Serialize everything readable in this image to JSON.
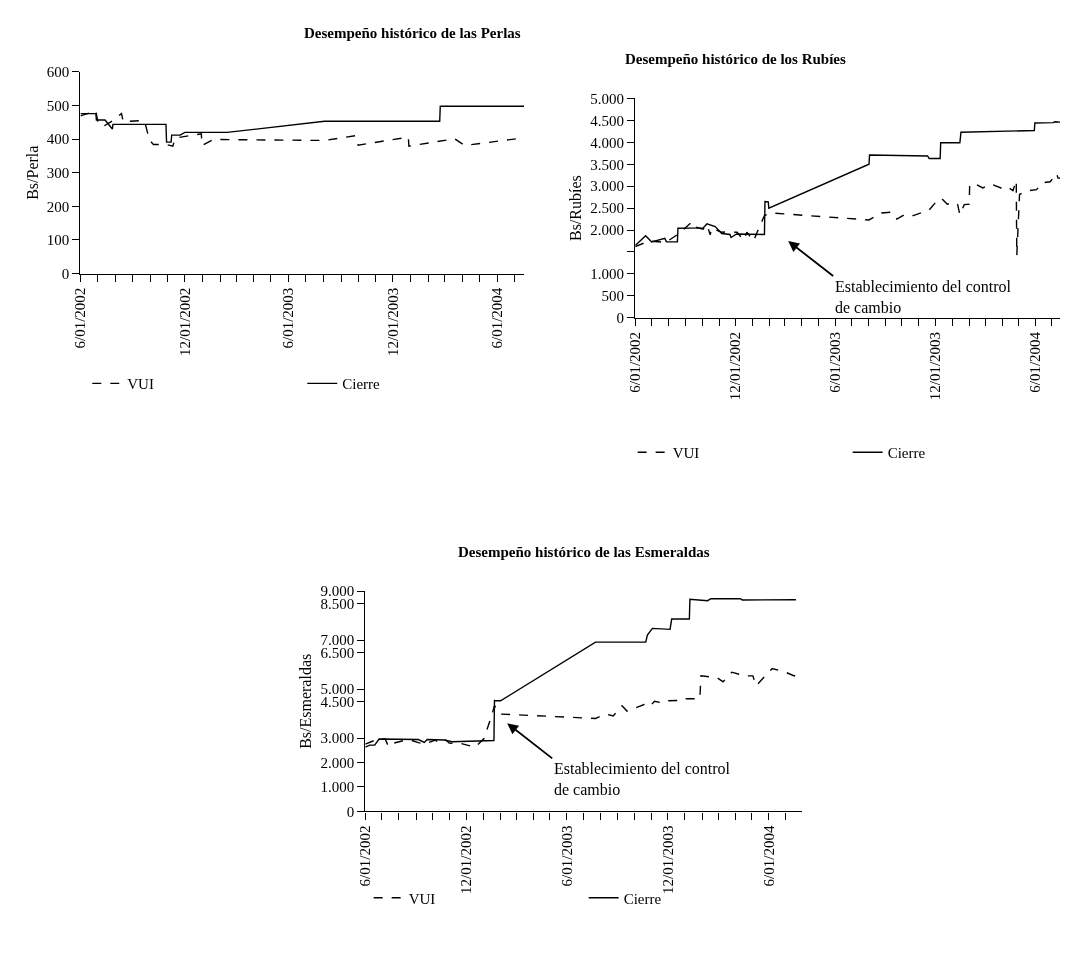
{
  "chart_data": [
    {
      "type": "line",
      "title": "Desempeño histórico de las Perlas",
      "ylabel": "Bs/Perla",
      "legend": "bottom",
      "marker": "none",
      "xlim": [
        "2002-06-01",
        "2004-07-18"
      ],
      "xticks": [
        {
          "value": "2002-06-01",
          "label": "6/01/2002"
        },
        {
          "value": "2002-07-01",
          "label": null
        },
        {
          "value": "2002-08-01",
          "label": null
        },
        {
          "value": "2002-09-01",
          "label": null
        },
        {
          "value": "2002-10-01",
          "label": null
        },
        {
          "value": "2002-11-01",
          "label": null
        },
        {
          "value": "2002-12-01",
          "label": "12/01/2002"
        },
        {
          "value": "2003-01-01",
          "label": null
        },
        {
          "value": "2003-02-01",
          "label": null
        },
        {
          "value": "2003-03-01",
          "label": null
        },
        {
          "value": "2003-04-01",
          "label": null
        },
        {
          "value": "2003-05-01",
          "label": null
        },
        {
          "value": "2003-06-01",
          "label": "6/01/2003"
        },
        {
          "value": "2003-07-01",
          "label": null
        },
        {
          "value": "2003-08-01",
          "label": null
        },
        {
          "value": "2003-09-01",
          "label": null
        },
        {
          "value": "2003-10-01",
          "label": null
        },
        {
          "value": "2003-11-01",
          "label": null
        },
        {
          "value": "2003-12-01",
          "label": "12/01/2003"
        },
        {
          "value": "2004-01-01",
          "label": null
        },
        {
          "value": "2004-02-01",
          "label": null
        },
        {
          "value": "2004-03-01",
          "label": null
        },
        {
          "value": "2004-04-01",
          "label": null
        },
        {
          "value": "2004-05-01",
          "label": null
        },
        {
          "value": "2004-06-01",
          "label": "6/01/2004"
        },
        {
          "value": "2004-07-01",
          "label": null
        }
      ],
      "ylim": [
        0,
        600
      ],
      "yticks": [
        0,
        100,
        200,
        300,
        400,
        500,
        600
      ],
      "series": [
        {
          "name": "VUI",
          "color": "#000000",
          "line_style": "dashed",
          "x": [
            "2002-06-01",
            "2002-06-28",
            "2002-07-02",
            "2002-07-11",
            "2002-07-25",
            "2002-08-12",
            "2002-08-15",
            "2002-09-14",
            "2002-09-22",
            "2002-09-30",
            "2002-10-07",
            "2002-10-29",
            "2002-11-10",
            "2002-11-14",
            "2002-12-30",
            "2002-12-31",
            "2003-01-20",
            "2003-08-03",
            "2003-09-26",
            "2003-10-01",
            "2003-12-28",
            "2003-12-29",
            "2004-03-18",
            "2004-04-05",
            "2004-07-18"
          ],
          "values": [
            469,
            484,
            447,
            438,
            452,
            476,
            452,
            455,
            450,
            397,
            384,
            384,
            379,
            403,
            416,
            381,
            399,
            396,
            410,
            382,
            406,
            379,
            401,
            381,
            404
          ]
        },
        {
          "name": "Cierre",
          "color": "#000000",
          "line_style": "solid",
          "x": [
            "2002-06-01",
            "2002-06-28",
            "2002-06-29",
            "2002-07-14",
            "2002-07-27",
            "2002-07-28",
            "2002-10-29",
            "2002-10-30",
            "2002-11-07",
            "2002-11-08",
            "2002-11-23",
            "2002-12-01",
            "2003-02-13",
            "2003-08-03",
            "2004-02-21",
            "2004-02-22",
            "2004-07-18"
          ],
          "values": [
            476,
            476,
            457,
            457,
            430,
            444,
            444,
            391,
            391,
            412,
            412,
            420,
            420,
            453,
            453,
            498,
            498
          ]
        }
      ]
    },
    {
      "type": "line",
      "title": "Desempeño histórico de los Rubíes",
      "ylabel": "Bs/Rubíes",
      "legend": "bottom",
      "marker": "none",
      "xlim": [
        "2002-06-01",
        "2004-07-16"
      ],
      "xticks": [
        {
          "value": "2002-06-01",
          "label": "6/01/2002"
        },
        {
          "value": "2002-07-01",
          "label": null
        },
        {
          "value": "2002-08-01",
          "label": null
        },
        {
          "value": "2002-09-01",
          "label": null
        },
        {
          "value": "2002-10-01",
          "label": null
        },
        {
          "value": "2002-11-01",
          "label": null
        },
        {
          "value": "2002-12-01",
          "label": "12/01/2002"
        },
        {
          "value": "2003-01-01",
          "label": null
        },
        {
          "value": "2003-02-01",
          "label": null
        },
        {
          "value": "2003-03-01",
          "label": null
        },
        {
          "value": "2003-04-01",
          "label": null
        },
        {
          "value": "2003-05-01",
          "label": null
        },
        {
          "value": "2003-06-01",
          "label": "6/01/2003"
        },
        {
          "value": "2003-07-01",
          "label": null
        },
        {
          "value": "2003-08-01",
          "label": null
        },
        {
          "value": "2003-09-01",
          "label": null
        },
        {
          "value": "2003-10-01",
          "label": null
        },
        {
          "value": "2003-11-01",
          "label": null
        },
        {
          "value": "2003-12-01",
          "label": "12/01/2003"
        },
        {
          "value": "2004-01-01",
          "label": null
        },
        {
          "value": "2004-02-01",
          "label": null
        },
        {
          "value": "2004-03-01",
          "label": null
        },
        {
          "value": "2004-04-01",
          "label": null
        },
        {
          "value": "2004-05-01",
          "label": null
        },
        {
          "value": "2004-06-01",
          "label": "6/01/2004"
        },
        {
          "value": "2004-07-01",
          "label": null
        }
      ],
      "ylim": [
        0,
        5000
      ],
      "yticks": [
        0,
        500,
        {
          "value": 1000,
          "label": "1.000"
        },
        {
          "value": 1500,
          "label": null
        },
        {
          "value": 2000,
          "label": "2.000"
        },
        {
          "value": 2500,
          "label": "2.500"
        },
        {
          "value": 3000,
          "label": "3.000"
        },
        {
          "value": 3500,
          "label": "3.500"
        },
        {
          "value": 4000,
          "label": "4.000"
        },
        {
          "value": 4500,
          "label": "4.500"
        },
        {
          "value": 5000,
          "label": "5.000"
        }
      ],
      "annotations": [
        "Establecimiento del control\nde cambio"
      ],
      "series": [
        {
          "name": "VUI",
          "color": "#000000",
          "line_style": "dashed",
          "x": [
            "2002-06-01",
            "2002-06-26",
            "2002-07-27",
            "2002-08-20",
            "2002-09-12",
            "2002-09-15",
            "2002-10-03",
            "2002-10-10",
            "2002-10-16",
            "2002-10-18",
            "2002-11-06",
            "2002-11-19",
            "2002-12-04",
            "2002-12-16",
            "2002-12-22",
            "2003-01-03",
            "2003-01-10",
            "2003-01-23",
            "2003-02-04",
            "2003-08-02",
            "2003-08-25",
            "2003-09-12",
            "2003-09-22",
            "2003-10-07",
            "2003-10-22",
            "2003-11-20",
            "2003-12-01",
            "2003-12-12",
            "2003-12-23",
            "2004-01-05",
            "2004-01-11",
            "2004-01-15",
            "2004-01-23",
            "2004-02-01",
            "2004-02-02",
            "2004-02-14",
            "2004-02-26",
            "2004-03-12",
            "2004-03-30",
            "2004-04-09",
            "2004-04-21",
            "2004-04-27",
            "2004-04-28",
            "2004-05-03",
            "2004-05-15",
            "2004-06-03",
            "2004-06-14",
            "2004-06-28",
            "2004-07-10",
            "2004-07-12",
            "2004-07-16"
          ],
          "values": [
            1620,
            1750,
            1720,
            1920,
            2180,
            2080,
            2020,
            2120,
            1890,
            2040,
            1950,
            1960,
            1950,
            1770,
            1950,
            1750,
            1960,
            2330,
            2390,
            2230,
            2390,
            2410,
            2250,
            2360,
            2330,
            2460,
            2620,
            2730,
            2590,
            2630,
            2580,
            2350,
            2580,
            2590,
            3040,
            3040,
            2960,
            3050,
            2960,
            3000,
            2900,
            3130,
            1420,
            2810,
            2890,
            2920,
            3080,
            3100,
            3290,
            3190,
            3180
          ]
        },
        {
          "name": "Cierre",
          "color": "#000000",
          "line_style": "solid",
          "x": [
            "2002-06-01",
            "2002-06-20",
            "2002-07-01",
            "2002-07-25",
            "2002-07-28",
            "2002-08-17",
            "2002-08-18",
            "2002-10-03",
            "2002-10-10",
            "2002-10-25",
            "2002-11-06",
            "2002-11-21",
            "2002-11-23",
            "2002-12-03",
            "2003-01-23",
            "2003-01-24",
            "2003-01-30",
            "2003-01-31",
            "2003-08-02",
            "2003-08-03",
            "2003-11-17",
            "2003-11-20",
            "2003-12-10",
            "2003-12-11",
            "2004-01-15",
            "2004-01-17",
            "2004-05-30",
            "2004-05-31",
            "2004-07-03",
            "2004-07-07",
            "2004-07-16"
          ],
          "values": [
            1650,
            1870,
            1730,
            1810,
            1730,
            1730,
            2040,
            2050,
            2140,
            2080,
            1920,
            1900,
            1830,
            1910,
            1900,
            2650,
            2640,
            2500,
            3500,
            3710,
            3690,
            3630,
            3630,
            3990,
            3990,
            4230,
            4270,
            4440,
            4450,
            4470,
            4460
          ]
        }
      ]
    },
    {
      "type": "line",
      "title": "Desempeño histórico de las Esmeraldas",
      "ylabel": "Bs/Esmeraldas",
      "legend": "bottom",
      "marker": "none",
      "xlim": [
        "2002-06-01",
        "2004-07-31"
      ],
      "xticks": [
        {
          "value": "2002-06-01",
          "label": "6/01/2002"
        },
        {
          "value": "2002-07-01",
          "label": null
        },
        {
          "value": "2002-08-01",
          "label": null
        },
        {
          "value": "2002-09-01",
          "label": null
        },
        {
          "value": "2002-10-01",
          "label": null
        },
        {
          "value": "2002-11-01",
          "label": null
        },
        {
          "value": "2002-12-01",
          "label": "12/01/2002"
        },
        {
          "value": "2003-01-01",
          "label": null
        },
        {
          "value": "2003-02-01",
          "label": null
        },
        {
          "value": "2003-03-01",
          "label": null
        },
        {
          "value": "2003-04-01",
          "label": null
        },
        {
          "value": "2003-05-01",
          "label": null
        },
        {
          "value": "2003-06-01",
          "label": "6/01/2003"
        },
        {
          "value": "2003-07-01",
          "label": null
        },
        {
          "value": "2003-08-01",
          "label": null
        },
        {
          "value": "2003-09-01",
          "label": null
        },
        {
          "value": "2003-10-01",
          "label": null
        },
        {
          "value": "2003-11-01",
          "label": null
        },
        {
          "value": "2003-12-01",
          "label": "12/01/2003"
        },
        {
          "value": "2004-01-01",
          "label": null
        },
        {
          "value": "2004-02-01",
          "label": null
        },
        {
          "value": "2004-03-01",
          "label": null
        },
        {
          "value": "2004-04-01",
          "label": null
        },
        {
          "value": "2004-05-01",
          "label": null
        },
        {
          "value": "2004-06-01",
          "label": "6/01/2004"
        },
        {
          "value": "2004-07-01",
          "label": null
        }
      ],
      "ylim": [
        0,
        9000
      ],
      "yticks": [
        0,
        {
          "value": 1000,
          "label": "1.000"
        },
        {
          "value": 2000,
          "label": "2.000"
        },
        {
          "value": 3000,
          "label": "3.000"
        },
        {
          "value": 4500,
          "label": "4.500"
        },
        {
          "value": 5000,
          "label": "5.000"
        },
        {
          "value": 6500,
          "label": "6.500"
        },
        {
          "value": 7000,
          "label": "7.000"
        },
        {
          "value": 8500,
          "label": "8.500"
        },
        {
          "value": 9000,
          "label": "9.000"
        }
      ],
      "annotations": [
        "Establecimiento del control\nde cambio"
      ],
      "series": [
        {
          "name": "VUI",
          "color": "#000000",
          "line_style": "dashed",
          "x": [
            "2002-06-01",
            "2002-06-24",
            "2002-07-07",
            "2002-07-13",
            "2002-07-22",
            "2002-08-14",
            "2002-08-26",
            "2002-09-05",
            "2002-09-18",
            "2002-10-06",
            "2002-10-12",
            "2002-10-25",
            "2002-10-31",
            "2002-11-22",
            "2002-12-17",
            "2003-01-02",
            "2003-01-15",
            "2003-01-21",
            "2003-01-31",
            "2003-07-23",
            "2003-08-11",
            "2003-08-24",
            "2003-09-09",
            "2003-09-18",
            "2003-10-19",
            "2003-10-28",
            "2003-11-07",
            "2003-11-20",
            "2003-11-26",
            "2003-12-24",
            "2003-12-27",
            "2004-01-28",
            "2004-01-30",
            "2004-02-28",
            "2004-03-10",
            "2004-03-26",
            "2004-04-18",
            "2004-05-03",
            "2004-05-09",
            "2004-06-07",
            "2004-07-01",
            "2004-07-17",
            "2004-07-23"
          ],
          "values": [
            2750,
            2960,
            2960,
            2650,
            2790,
            2920,
            2890,
            2810,
            2760,
            2920,
            2790,
            2920,
            2790,
            2770,
            2630,
            2980,
            3860,
            4320,
            3980,
            3800,
            3980,
            3900,
            4320,
            4100,
            4370,
            4280,
            4500,
            4440,
            4520,
            4540,
            4600,
            4610,
            5540,
            5470,
            5300,
            5690,
            5540,
            5540,
            5140,
            5840,
            5690,
            5540,
            5650
          ]
        },
        {
          "name": "Cierre",
          "color": "#000000",
          "line_style": "solid",
          "x": [
            "2002-06-01",
            "2002-06-09",
            "2002-06-18",
            "2002-06-26",
            "2002-09-05",
            "2002-09-16",
            "2002-09-21",
            "2002-10-22",
            "2002-11-05",
            "2003-01-20",
            "2003-01-21",
            "2003-01-24",
            "2003-02-01",
            "2003-07-23",
            "2003-10-22",
            "2003-10-25",
            "2003-11-03",
            "2003-12-05",
            "2003-12-08",
            "2004-01-09",
            "2004-01-10",
            "2004-02-11",
            "2004-02-17",
            "2004-04-10",
            "2004-04-14",
            "2004-07-20"
          ],
          "values": [
            2630,
            2710,
            2710,
            2960,
            2940,
            2820,
            2940,
            2920,
            2850,
            2900,
            4540,
            4520,
            4520,
            6920,
            6920,
            7210,
            7480,
            7440,
            7860,
            7860,
            8670,
            8610,
            8690,
            8690,
            8640,
            8650
          ]
        }
      ]
    }
  ]
}
